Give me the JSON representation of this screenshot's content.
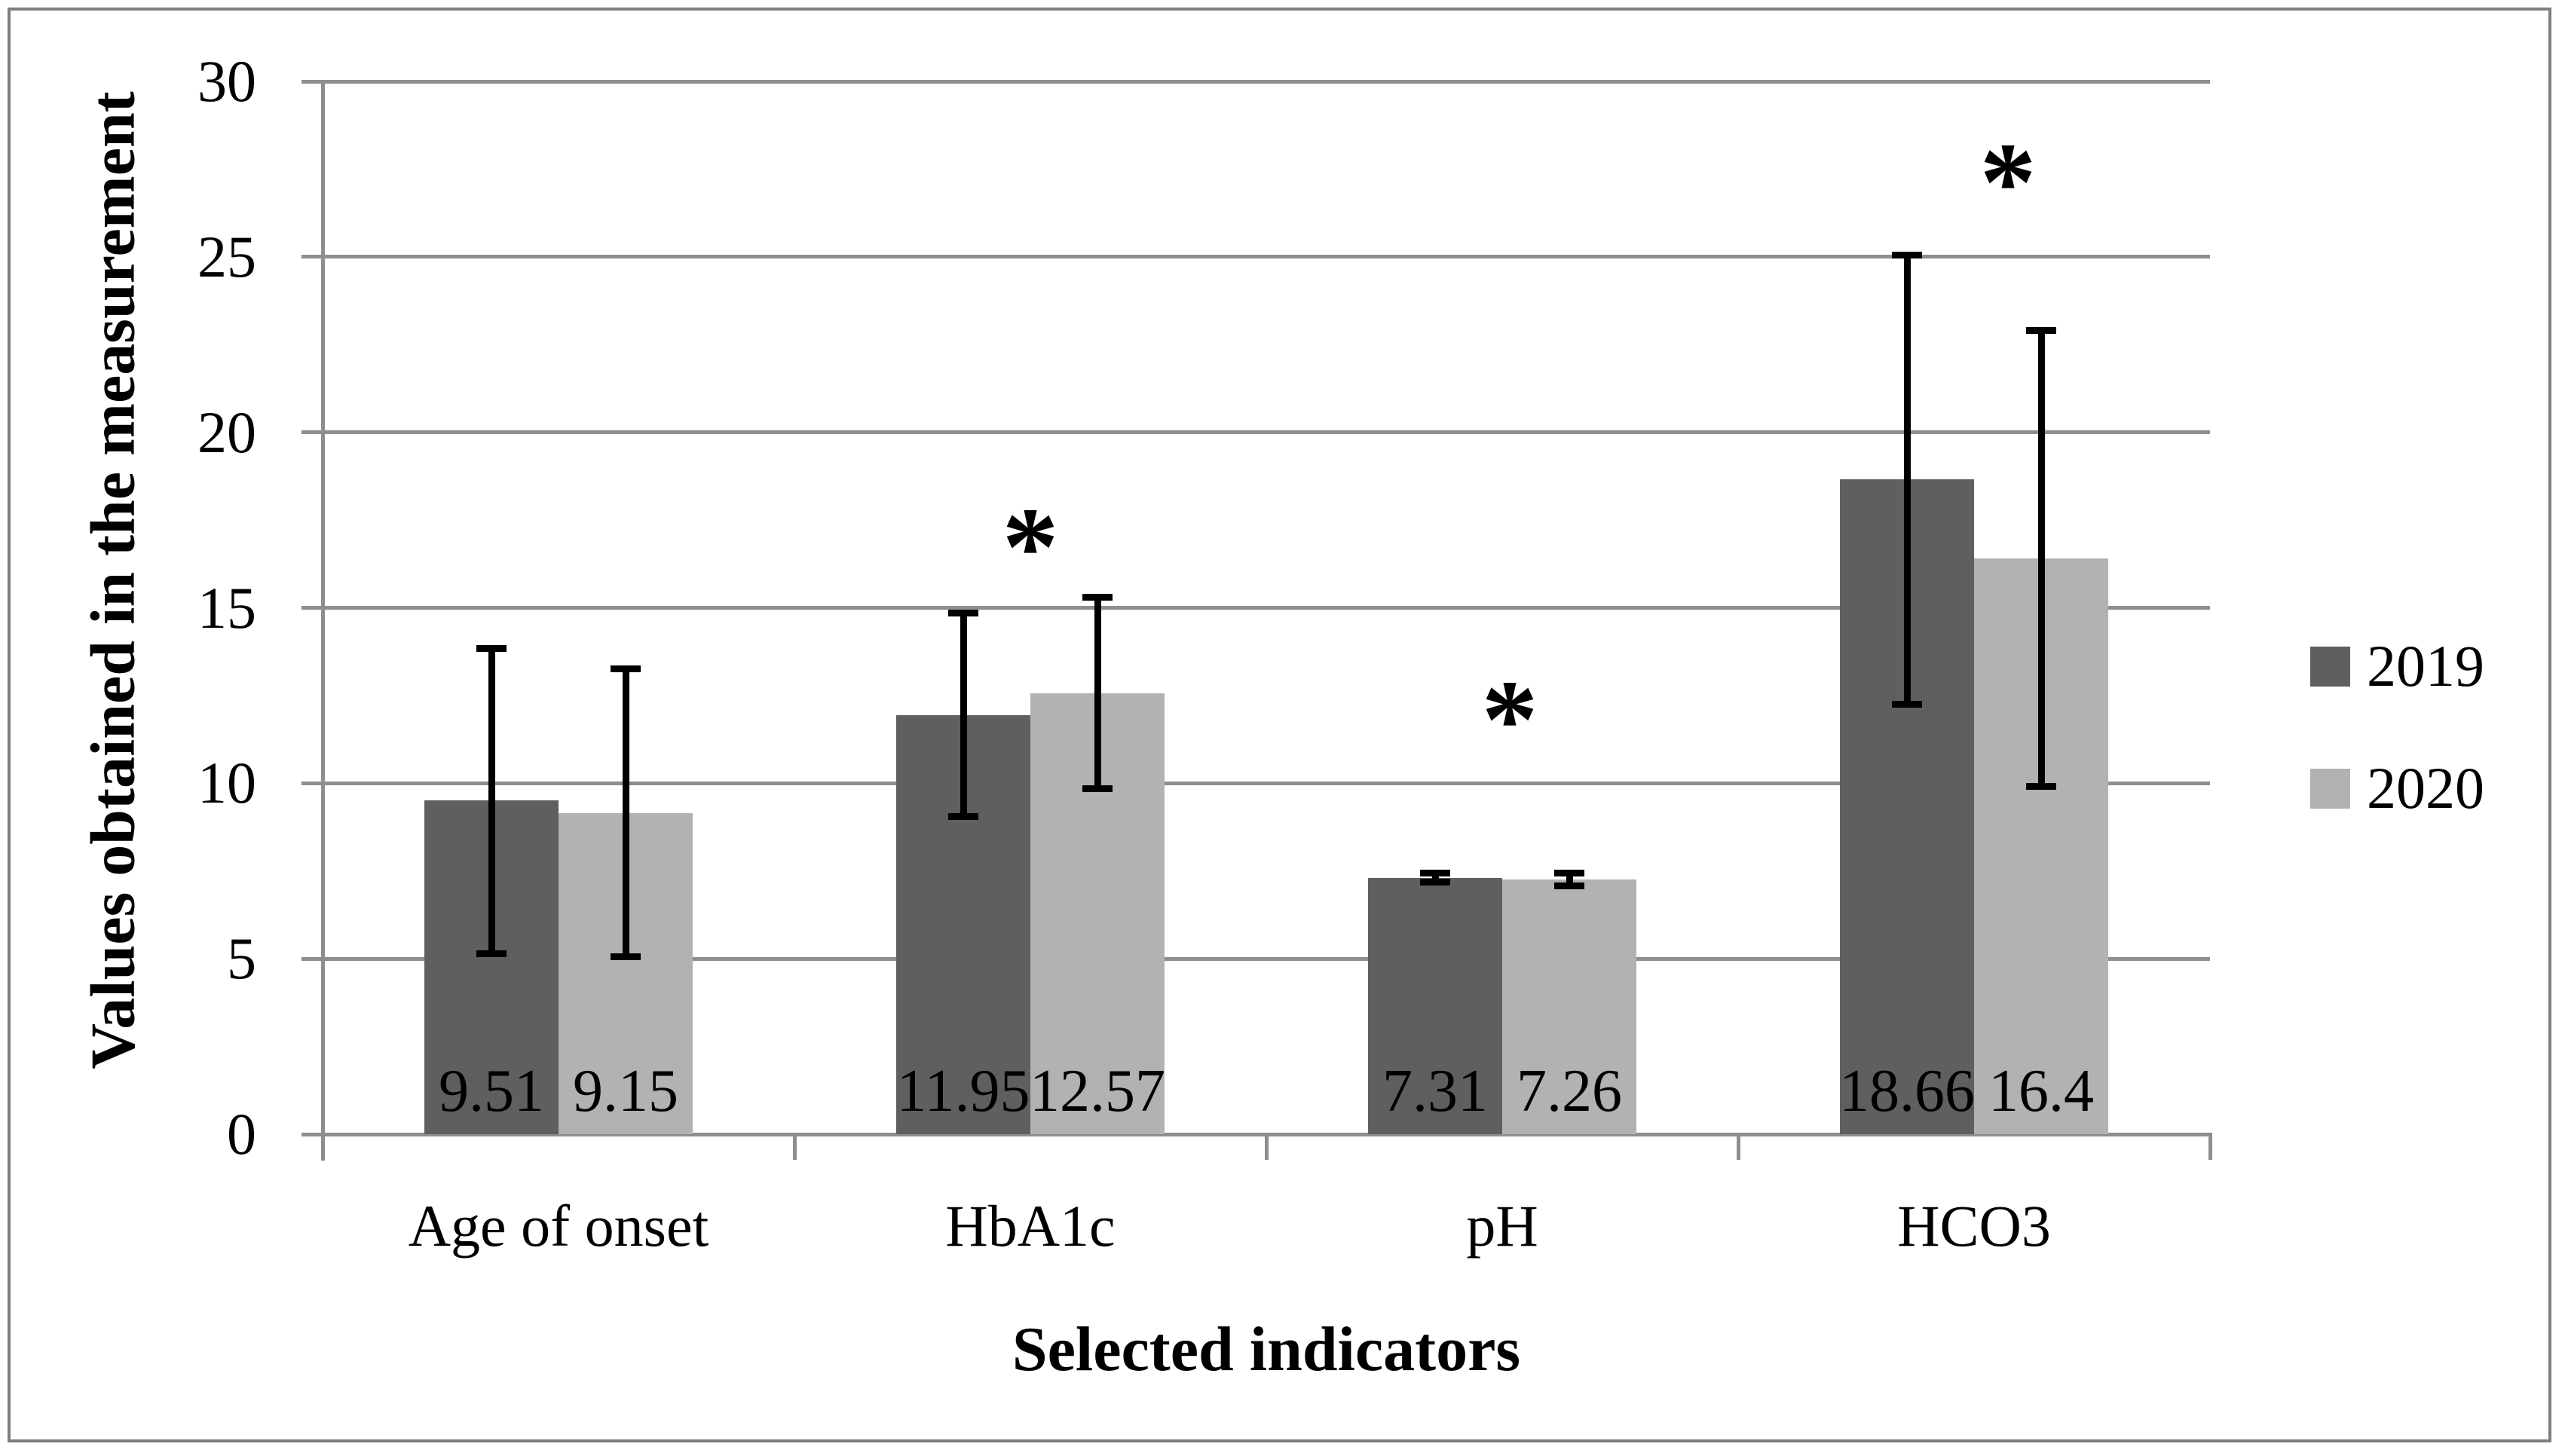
{
  "figure": {
    "background": "#ffffff",
    "frame_color": "#7f7f7f",
    "gridline_color": "#8e8e8e",
    "error_bar_color": "#000000"
  },
  "chart_data": {
    "type": "bar",
    "title": "",
    "xlabel": "Selected indicators",
    "ylabel": "Values obtained in the measurement",
    "categories": [
      "Age of onset",
      "HbA1c",
      "pH",
      "HCO3"
    ],
    "series": [
      {
        "name": "2019",
        "color": "#5f5f5f",
        "values": [
          9.51,
          11.95,
          7.31,
          18.66
        ],
        "data_labels": [
          "9.51",
          "11.95",
          "7.31",
          "18.66"
        ],
        "error_low": [
          5.15,
          9.05,
          7.18,
          12.25
        ],
        "error_high": [
          13.85,
          14.85,
          7.44,
          25.05
        ]
      },
      {
        "name": "2020",
        "color": "#b2b2b2",
        "values": [
          9.15,
          12.57,
          7.26,
          16.4
        ],
        "data_labels": [
          "9.15",
          "12.57",
          "7.26",
          "16.4"
        ],
        "error_low": [
          5.05,
          9.85,
          7.08,
          9.9
        ],
        "error_high": [
          13.25,
          15.3,
          7.44,
          22.9
        ]
      }
    ],
    "ylim": [
      0,
      30
    ],
    "yticks": [
      0,
      5,
      10,
      15,
      20,
      25,
      30
    ],
    "grid": true,
    "error_bars": true,
    "legend_position": "right",
    "significance_markers": [
      {
        "symbol": "*",
        "category_index": 1,
        "y_value": 17.3,
        "x_offset": 0
      },
      {
        "symbol": "*",
        "category_index": 2,
        "y_value": 12.4,
        "x_offset": 10
      },
      {
        "symbol": "*",
        "category_index": 3,
        "y_value": 27.7,
        "x_offset": 45
      }
    ]
  }
}
